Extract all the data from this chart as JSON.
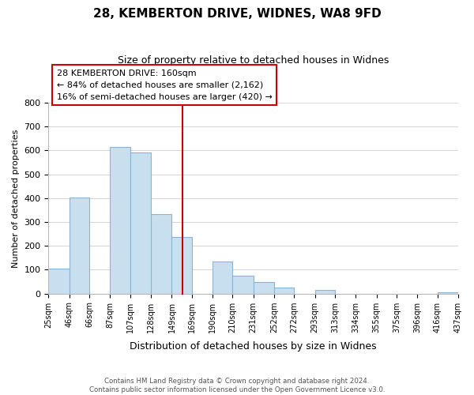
{
  "title": "28, KEMBERTON DRIVE, WIDNES, WA8 9FD",
  "subtitle": "Size of property relative to detached houses in Widnes",
  "xlabel": "Distribution of detached houses by size in Widnes",
  "ylabel": "Number of detached properties",
  "footnote1": "Contains HM Land Registry data © Crown copyright and database right 2024.",
  "footnote2": "Contains public sector information licensed under the Open Government Licence v3.0.",
  "bar_edges": [
    25,
    46,
    66,
    87,
    107,
    128,
    149,
    169,
    190,
    210,
    231,
    252,
    272,
    293,
    313,
    334,
    355,
    375,
    396,
    416,
    437
  ],
  "bar_heights": [
    105,
    403,
    0,
    614,
    590,
    333,
    238,
    0,
    135,
    76,
    50,
    25,
    0,
    15,
    0,
    0,
    0,
    0,
    0,
    7
  ],
  "bar_color": "#c8dff0",
  "bar_edge_color": "#8ab4d4",
  "property_line_x": 160,
  "property_line_color": "#cc0000",
  "annotation_line1": "28 KEMBERTON DRIVE: 160sqm",
  "annotation_line2": "← 84% of detached houses are smaller (2,162)",
  "annotation_line3": "16% of semi-detached houses are larger (420) →",
  "annotation_box_color": "#cc0000",
  "ylim": [
    0,
    800
  ],
  "yticks": [
    0,
    100,
    200,
    300,
    400,
    500,
    600,
    700,
    800
  ],
  "tick_labels": [
    "25sqm",
    "46sqm",
    "66sqm",
    "87sqm",
    "107sqm",
    "128sqm",
    "149sqm",
    "169sqm",
    "190sqm",
    "210sqm",
    "231sqm",
    "252sqm",
    "272sqm",
    "293sqm",
    "313sqm",
    "334sqm",
    "355sqm",
    "375sqm",
    "396sqm",
    "416sqm",
    "437sqm"
  ],
  "background_color": "#ffffff",
  "grid_color": "#d8d8d8"
}
